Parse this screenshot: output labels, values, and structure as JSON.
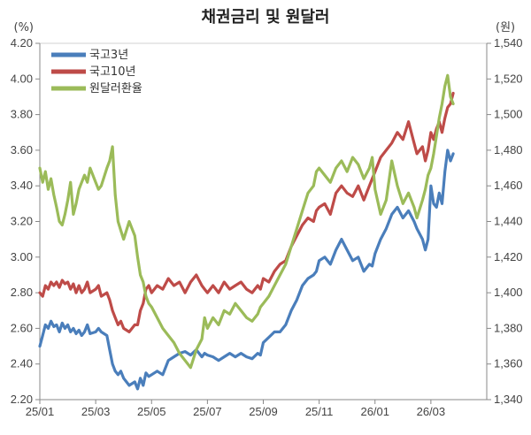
{
  "chart_data": {
    "type": "line",
    "title": "채권금리 및 원달러",
    "left_unit": "(%)",
    "right_unit": "(원)",
    "y_left": {
      "min": 2.2,
      "max": 4.2,
      "ticks": [
        "2.20",
        "2.40",
        "2.60",
        "2.80",
        "3.00",
        "3.20",
        "3.40",
        "3.60",
        "3.80",
        "4.00",
        "4.20"
      ]
    },
    "y_right": {
      "min": 1340,
      "max": 1540,
      "ticks": [
        "1,340",
        "1,360",
        "1,380",
        "1,400",
        "1,420",
        "1,440",
        "1,460",
        "1,480",
        "1,500",
        "1,520",
        "1,540"
      ]
    },
    "x_labels": [
      "25/01",
      "25/03",
      "25/05",
      "25/07",
      "25/09",
      "25/11",
      "26/01",
      "26/03"
    ],
    "legend_position": "top-left",
    "grid": false,
    "series": [
      {
        "name": "국고3년",
        "color": "#4a7ebb",
        "axis": "left",
        "points": [
          [
            0.0,
            2.5
          ],
          [
            0.1,
            2.56
          ],
          [
            0.2,
            2.62
          ],
          [
            0.3,
            2.6
          ],
          [
            0.4,
            2.64
          ],
          [
            0.5,
            2.61
          ],
          [
            0.6,
            2.62
          ],
          [
            0.7,
            2.58
          ],
          [
            0.8,
            2.63
          ],
          [
            0.9,
            2.6
          ],
          [
            1.0,
            2.62
          ],
          [
            1.1,
            2.58
          ],
          [
            1.2,
            2.6
          ],
          [
            1.3,
            2.57
          ],
          [
            1.4,
            2.59
          ],
          [
            1.5,
            2.56
          ],
          [
            1.6,
            2.58
          ],
          [
            1.7,
            2.62
          ],
          [
            1.8,
            2.57
          ],
          [
            2.0,
            2.58
          ],
          [
            2.1,
            2.6
          ],
          [
            2.2,
            2.58
          ],
          [
            2.4,
            2.56
          ],
          [
            2.5,
            2.48
          ],
          [
            2.6,
            2.4
          ],
          [
            2.7,
            2.36
          ],
          [
            2.8,
            2.34
          ],
          [
            2.9,
            2.36
          ],
          [
            3.0,
            2.32
          ],
          [
            3.2,
            2.28
          ],
          [
            3.4,
            2.3
          ],
          [
            3.5,
            2.26
          ],
          [
            3.6,
            2.32
          ],
          [
            3.7,
            2.28
          ],
          [
            3.8,
            2.35
          ],
          [
            3.9,
            2.33
          ],
          [
            4.0,
            2.34
          ],
          [
            4.2,
            2.36
          ],
          [
            4.4,
            2.34
          ],
          [
            4.6,
            2.42
          ],
          [
            4.8,
            2.44
          ],
          [
            5.0,
            2.46
          ],
          [
            5.2,
            2.47
          ],
          [
            5.4,
            2.45
          ],
          [
            5.6,
            2.48
          ],
          [
            5.8,
            2.44
          ],
          [
            5.9,
            2.46
          ],
          [
            6.0,
            2.45
          ],
          [
            6.2,
            2.44
          ],
          [
            6.4,
            2.42
          ],
          [
            6.6,
            2.44
          ],
          [
            6.8,
            2.46
          ],
          [
            7.0,
            2.44
          ],
          [
            7.2,
            2.46
          ],
          [
            7.4,
            2.44
          ],
          [
            7.6,
            2.43
          ],
          [
            7.8,
            2.46
          ],
          [
            7.9,
            2.45
          ],
          [
            8.0,
            2.52
          ],
          [
            8.2,
            2.55
          ],
          [
            8.4,
            2.58
          ],
          [
            8.6,
            2.58
          ],
          [
            8.8,
            2.62
          ],
          [
            9.0,
            2.7
          ],
          [
            9.2,
            2.76
          ],
          [
            9.4,
            2.84
          ],
          [
            9.6,
            2.88
          ],
          [
            9.8,
            2.9
          ],
          [
            9.9,
            2.92
          ],
          [
            10.0,
            2.98
          ],
          [
            10.2,
            3.0
          ],
          [
            10.4,
            2.96
          ],
          [
            10.6,
            3.04
          ],
          [
            10.8,
            3.1
          ],
          [
            11.0,
            3.04
          ],
          [
            11.2,
            2.98
          ],
          [
            11.4,
            3.0
          ],
          [
            11.6,
            2.92
          ],
          [
            11.8,
            2.96
          ],
          [
            11.9,
            2.95
          ],
          [
            12.0,
            3.02
          ],
          [
            12.2,
            3.1
          ],
          [
            12.4,
            3.16
          ],
          [
            12.6,
            3.24
          ],
          [
            12.8,
            3.28
          ],
          [
            13.0,
            3.22
          ],
          [
            13.2,
            3.26
          ],
          [
            13.4,
            3.2
          ],
          [
            13.5,
            3.16
          ],
          [
            13.7,
            3.1
          ],
          [
            13.8,
            3.04
          ],
          [
            13.9,
            3.1
          ],
          [
            14.0,
            3.4
          ],
          [
            14.1,
            3.3
          ],
          [
            14.2,
            3.28
          ],
          [
            14.3,
            3.36
          ],
          [
            14.4,
            3.3
          ],
          [
            14.5,
            3.48
          ],
          [
            14.6,
            3.6
          ],
          [
            14.7,
            3.54
          ],
          [
            14.8,
            3.58
          ]
        ]
      },
      {
        "name": "국고10년",
        "color": "#be4b48",
        "axis": "left",
        "points": [
          [
            0.0,
            2.8
          ],
          [
            0.1,
            2.78
          ],
          [
            0.2,
            2.84
          ],
          [
            0.3,
            2.82
          ],
          [
            0.4,
            2.86
          ],
          [
            0.5,
            2.84
          ],
          [
            0.6,
            2.86
          ],
          [
            0.7,
            2.83
          ],
          [
            0.8,
            2.87
          ],
          [
            0.9,
            2.85
          ],
          [
            1.0,
            2.86
          ],
          [
            1.1,
            2.82
          ],
          [
            1.2,
            2.85
          ],
          [
            1.3,
            2.8
          ],
          [
            1.4,
            2.84
          ],
          [
            1.5,
            2.8
          ],
          [
            1.6,
            2.82
          ],
          [
            1.7,
            2.86
          ],
          [
            1.8,
            2.8
          ],
          [
            2.0,
            2.82
          ],
          [
            2.1,
            2.84
          ],
          [
            2.2,
            2.78
          ],
          [
            2.4,
            2.8
          ],
          [
            2.5,
            2.76
          ],
          [
            2.6,
            2.7
          ],
          [
            2.7,
            2.66
          ],
          [
            2.8,
            2.62
          ],
          [
            2.9,
            2.64
          ],
          [
            3.0,
            2.6
          ],
          [
            3.2,
            2.58
          ],
          [
            3.4,
            2.62
          ],
          [
            3.5,
            2.62
          ],
          [
            3.6,
            2.7
          ],
          [
            3.7,
            2.74
          ],
          [
            3.8,
            2.82
          ],
          [
            3.9,
            2.84
          ],
          [
            4.0,
            2.8
          ],
          [
            4.2,
            2.84
          ],
          [
            4.4,
            2.82
          ],
          [
            4.6,
            2.88
          ],
          [
            4.8,
            2.84
          ],
          [
            5.0,
            2.86
          ],
          [
            5.2,
            2.8
          ],
          [
            5.4,
            2.86
          ],
          [
            5.6,
            2.9
          ],
          [
            5.8,
            2.84
          ],
          [
            5.9,
            2.82
          ],
          [
            6.0,
            2.8
          ],
          [
            6.2,
            2.84
          ],
          [
            6.4,
            2.8
          ],
          [
            6.6,
            2.86
          ],
          [
            6.8,
            2.82
          ],
          [
            7.0,
            2.84
          ],
          [
            7.2,
            2.86
          ],
          [
            7.4,
            2.82
          ],
          [
            7.6,
            2.8
          ],
          [
            7.8,
            2.84
          ],
          [
            7.9,
            2.82
          ],
          [
            8.0,
            2.88
          ],
          [
            8.2,
            2.86
          ],
          [
            8.4,
            2.92
          ],
          [
            8.6,
            2.96
          ],
          [
            8.8,
            2.98
          ],
          [
            9.0,
            3.06
          ],
          [
            9.2,
            3.12
          ],
          [
            9.4,
            3.18
          ],
          [
            9.6,
            3.22
          ],
          [
            9.8,
            3.2
          ],
          [
            9.9,
            3.26
          ],
          [
            10.0,
            3.28
          ],
          [
            10.2,
            3.3
          ],
          [
            10.4,
            3.24
          ],
          [
            10.6,
            3.36
          ],
          [
            10.8,
            3.4
          ],
          [
            11.0,
            3.36
          ],
          [
            11.2,
            3.34
          ],
          [
            11.4,
            3.4
          ],
          [
            11.6,
            3.32
          ],
          [
            11.8,
            3.4
          ],
          [
            11.9,
            3.44
          ],
          [
            12.0,
            3.48
          ],
          [
            12.2,
            3.56
          ],
          [
            12.4,
            3.6
          ],
          [
            12.6,
            3.64
          ],
          [
            12.8,
            3.7
          ],
          [
            13.0,
            3.66
          ],
          [
            13.2,
            3.76
          ],
          [
            13.4,
            3.64
          ],
          [
            13.5,
            3.58
          ],
          [
            13.7,
            3.62
          ],
          [
            13.8,
            3.54
          ],
          [
            13.9,
            3.6
          ],
          [
            14.0,
            3.7
          ],
          [
            14.1,
            3.66
          ],
          [
            14.2,
            3.72
          ],
          [
            14.3,
            3.76
          ],
          [
            14.4,
            3.7
          ],
          [
            14.5,
            3.78
          ],
          [
            14.6,
            3.84
          ],
          [
            14.7,
            3.86
          ],
          [
            14.8,
            3.92
          ]
        ]
      },
      {
        "name": "원달러환율",
        "color": "#9bbb59",
        "axis": "right",
        "points": [
          [
            0.0,
            1470
          ],
          [
            0.1,
            1462
          ],
          [
            0.2,
            1468
          ],
          [
            0.3,
            1458
          ],
          [
            0.4,
            1464
          ],
          [
            0.5,
            1455
          ],
          [
            0.6,
            1448
          ],
          [
            0.7,
            1440
          ],
          [
            0.8,
            1438
          ],
          [
            0.9,
            1444
          ],
          [
            1.0,
            1452
          ],
          [
            1.1,
            1462
          ],
          [
            1.2,
            1444
          ],
          [
            1.3,
            1450
          ],
          [
            1.4,
            1458
          ],
          [
            1.5,
            1462
          ],
          [
            1.6,
            1466
          ],
          [
            1.7,
            1462
          ],
          [
            1.8,
            1470
          ],
          [
            2.0,
            1462
          ],
          [
            2.1,
            1458
          ],
          [
            2.2,
            1460
          ],
          [
            2.4,
            1470
          ],
          [
            2.5,
            1474
          ],
          [
            2.6,
            1482
          ],
          [
            2.7,
            1455
          ],
          [
            2.8,
            1440
          ],
          [
            2.9,
            1435
          ],
          [
            3.0,
            1430
          ],
          [
            3.2,
            1440
          ],
          [
            3.4,
            1432
          ],
          [
            3.5,
            1420
          ],
          [
            3.6,
            1410
          ],
          [
            3.7,
            1406
          ],
          [
            3.8,
            1398
          ],
          [
            3.9,
            1394
          ],
          [
            4.0,
            1392
          ],
          [
            4.2,
            1386
          ],
          [
            4.4,
            1380
          ],
          [
            4.6,
            1376
          ],
          [
            4.8,
            1372
          ],
          [
            5.0,
            1366
          ],
          [
            5.2,
            1362
          ],
          [
            5.4,
            1358
          ],
          [
            5.6,
            1368
          ],
          [
            5.8,
            1374
          ],
          [
            5.9,
            1386
          ],
          [
            6.0,
            1380
          ],
          [
            6.2,
            1386
          ],
          [
            6.4,
            1382
          ],
          [
            6.6,
            1390
          ],
          [
            6.8,
            1388
          ],
          [
            7.0,
            1394
          ],
          [
            7.2,
            1390
          ],
          [
            7.4,
            1386
          ],
          [
            7.6,
            1384
          ],
          [
            7.8,
            1388
          ],
          [
            7.9,
            1392
          ],
          [
            8.0,
            1394
          ],
          [
            8.2,
            1398
          ],
          [
            8.4,
            1404
          ],
          [
            8.6,
            1410
          ],
          [
            8.8,
            1416
          ],
          [
            9.0,
            1426
          ],
          [
            9.2,
            1436
          ],
          [
            9.4,
            1446
          ],
          [
            9.6,
            1456
          ],
          [
            9.8,
            1460
          ],
          [
            9.9,
            1468
          ],
          [
            10.0,
            1470
          ],
          [
            10.2,
            1466
          ],
          [
            10.4,
            1462
          ],
          [
            10.6,
            1470
          ],
          [
            10.8,
            1474
          ],
          [
            11.0,
            1468
          ],
          [
            11.2,
            1476
          ],
          [
            11.4,
            1472
          ],
          [
            11.6,
            1464
          ],
          [
            11.8,
            1470
          ],
          [
            11.9,
            1476
          ],
          [
            12.0,
            1458
          ],
          [
            12.2,
            1444
          ],
          [
            12.4,
            1452
          ],
          [
            12.6,
            1474
          ],
          [
            12.8,
            1460
          ],
          [
            13.0,
            1450
          ],
          [
            13.2,
            1456
          ],
          [
            13.4,
            1448
          ],
          [
            13.5,
            1442
          ],
          [
            13.7,
            1452
          ],
          [
            13.8,
            1458
          ],
          [
            13.9,
            1466
          ],
          [
            14.0,
            1470
          ],
          [
            14.1,
            1478
          ],
          [
            14.2,
            1488
          ],
          [
            14.3,
            1498
          ],
          [
            14.4,
            1506
          ],
          [
            14.5,
            1516
          ],
          [
            14.6,
            1522
          ],
          [
            14.7,
            1510
          ],
          [
            14.8,
            1506
          ]
        ]
      }
    ]
  }
}
